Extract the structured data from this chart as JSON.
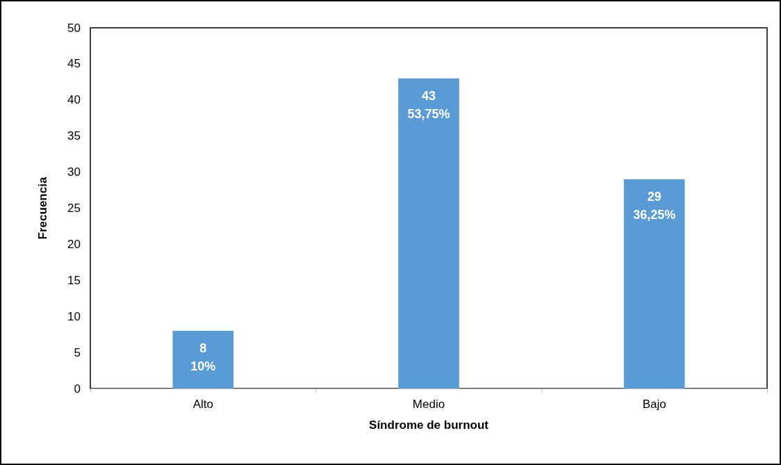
{
  "chart_data": {
    "type": "bar",
    "xlabel": "Síndrome de burnout",
    "ylabel": "Frecuencia",
    "categories": [
      "Alto",
      "Medio",
      "Bajo"
    ],
    "values": [
      8,
      43,
      29
    ],
    "value_labels": [
      "8\n10%",
      "43\n53,75%",
      "29\n36,25%"
    ],
    "color": "#5b9bd5",
    "ylim": [
      0,
      50
    ],
    "yticks": [
      0,
      5,
      10,
      15,
      20,
      25,
      30,
      35,
      40,
      45,
      50
    ],
    "grid": false
  }
}
